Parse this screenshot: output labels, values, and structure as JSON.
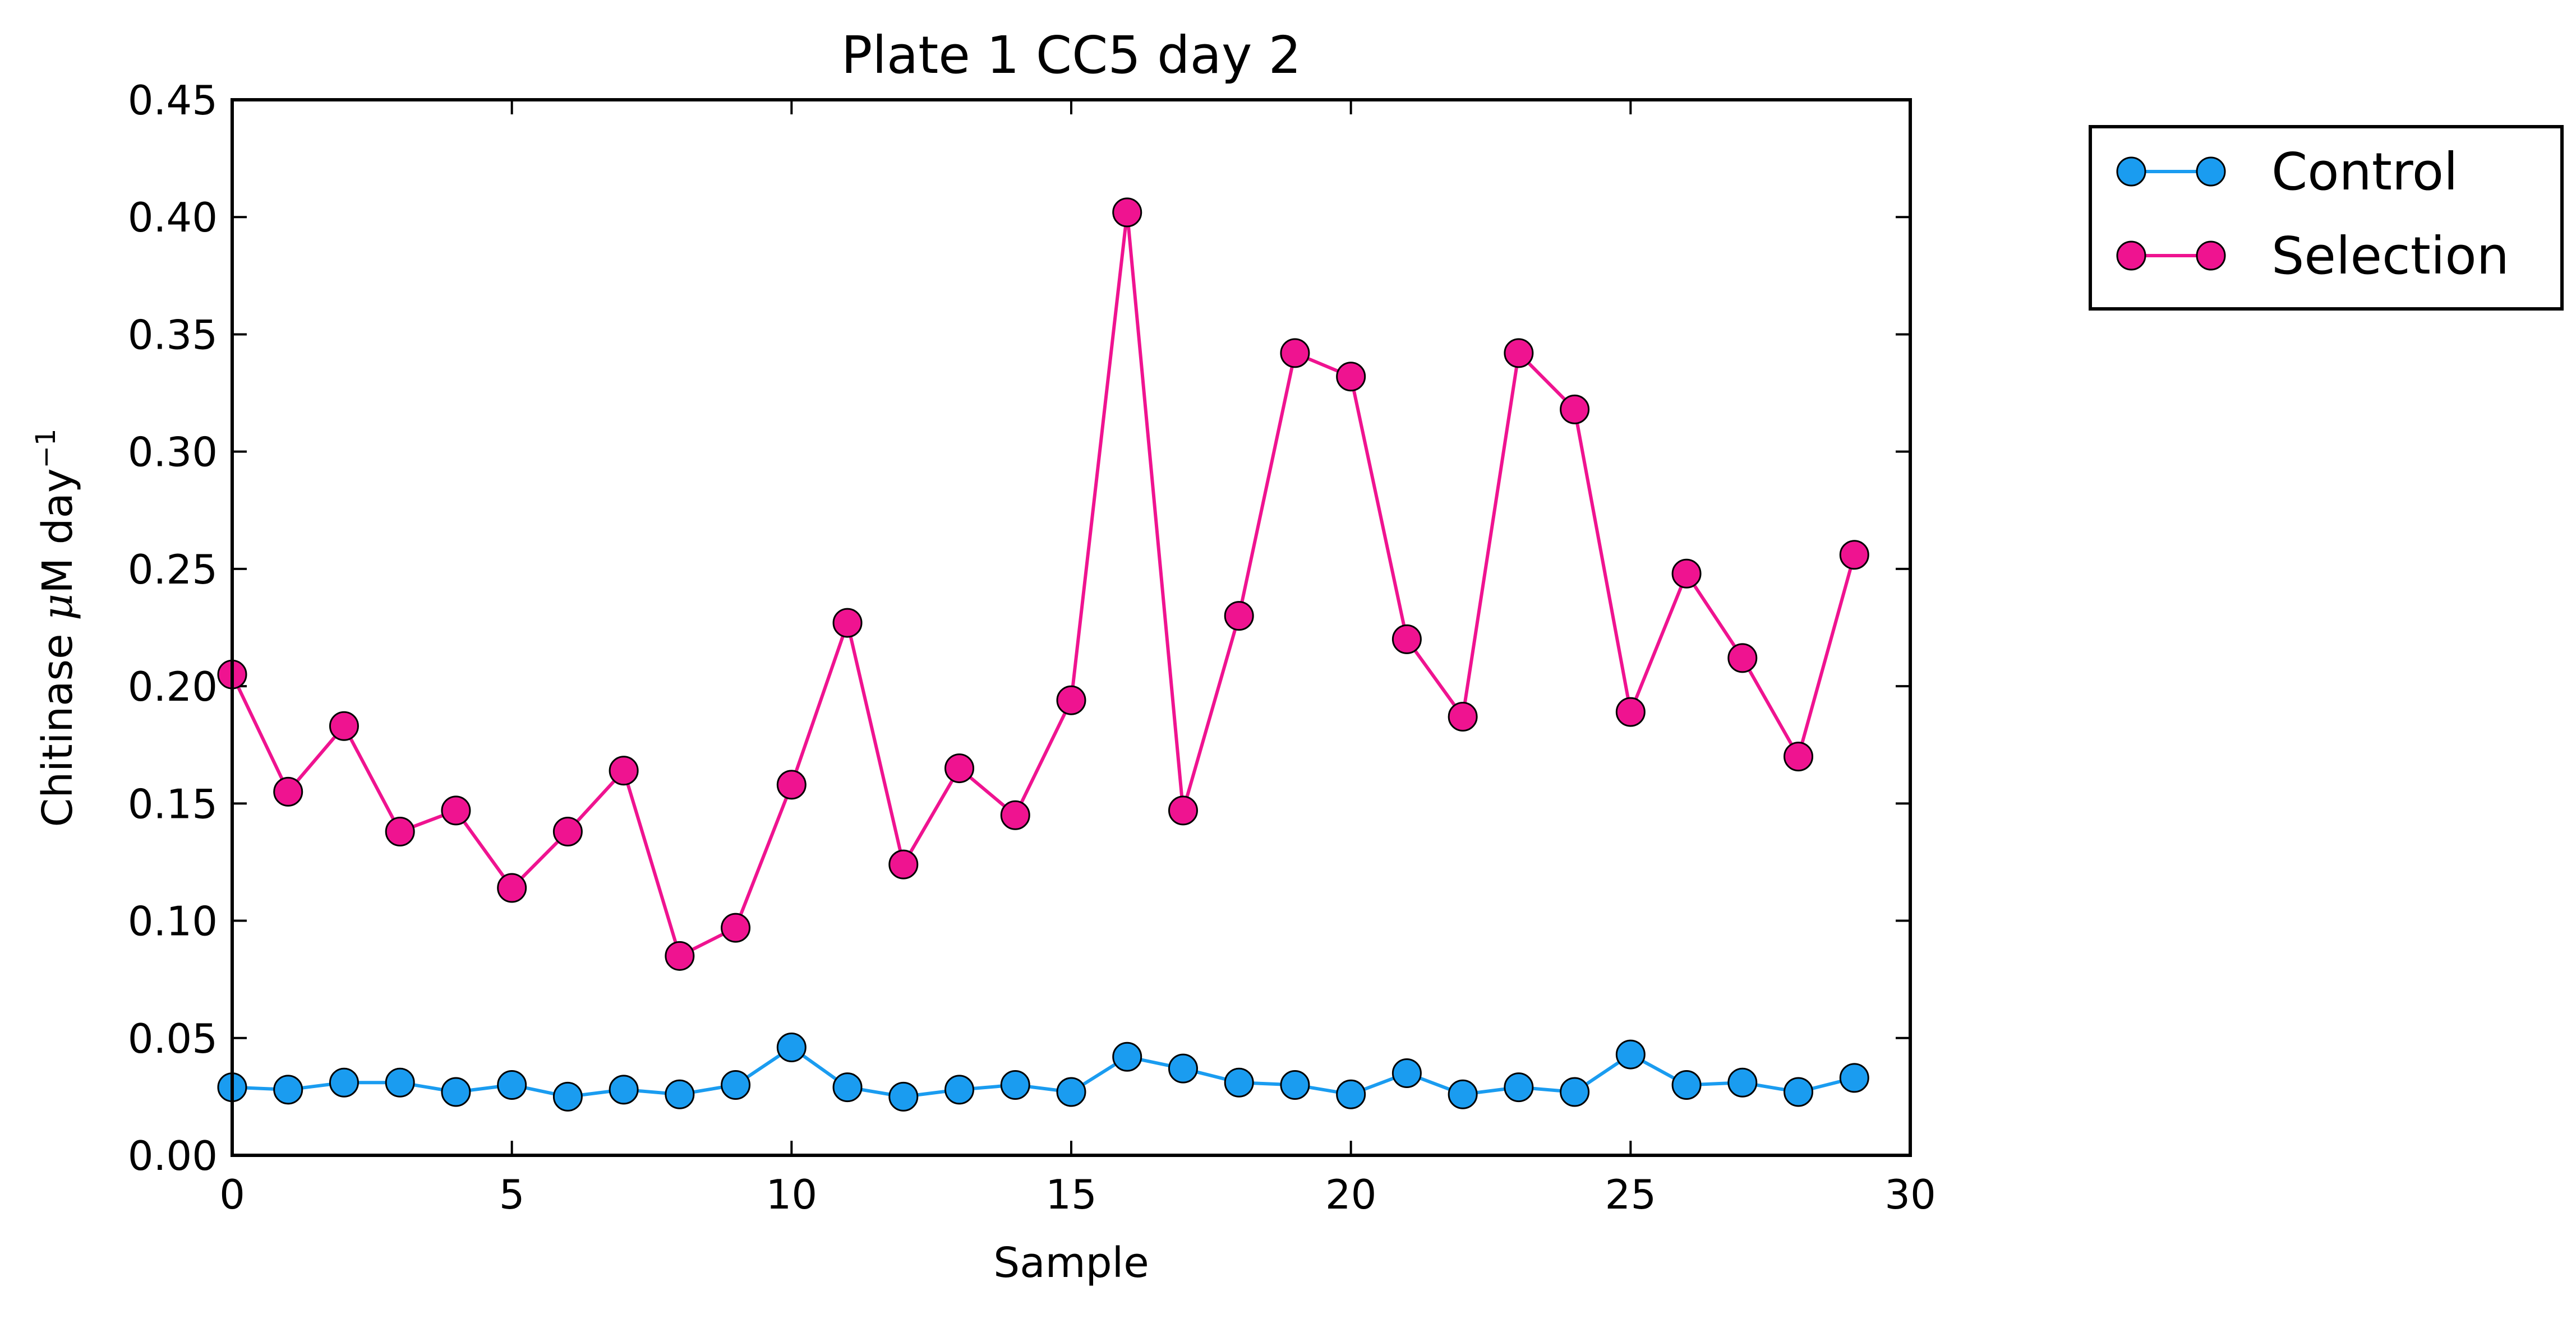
{
  "chart_data": {
    "type": "line",
    "title": "Plate 1 CC5 day 2",
    "xlabel": "Sample",
    "ylabel_text": "Chitinase ",
    "ylabel_mu": "μ",
    "ylabel_unit": "M day",
    "ylabel_exp": "−1",
    "xlim": [
      0,
      30
    ],
    "ylim": [
      0,
      0.45
    ],
    "xticks": [
      0,
      5,
      10,
      15,
      20,
      25,
      30
    ],
    "xtick_labels": [
      "0",
      "5",
      "10",
      "15",
      "20",
      "25",
      "30"
    ],
    "yticks": [
      0,
      0.05,
      0.1,
      0.15,
      0.2,
      0.25,
      0.3,
      0.35,
      0.4,
      0.45
    ],
    "ytick_labels": [
      "0.00",
      "0.05",
      "0.10",
      "0.15",
      "0.20",
      "0.25",
      "0.30",
      "0.35",
      "0.40",
      "0.45"
    ],
    "grid": false,
    "legend_position": "outside-right-top",
    "x": [
      0,
      1,
      2,
      3,
      4,
      5,
      6,
      7,
      8,
      9,
      10,
      11,
      12,
      13,
      14,
      15,
      16,
      17,
      18,
      19,
      20,
      21,
      22,
      23,
      24,
      25,
      26,
      27,
      28,
      29
    ],
    "series": [
      {
        "name": "Control",
        "color": "#1a9cf0",
        "marker": "circle",
        "values": [
          0.029,
          0.028,
          0.031,
          0.031,
          0.027,
          0.03,
          0.025,
          0.028,
          0.026,
          0.03,
          0.046,
          0.029,
          0.025,
          0.028,
          0.03,
          0.027,
          0.042,
          0.037,
          0.031,
          0.03,
          0.026,
          0.035,
          0.026,
          0.029,
          0.027,
          0.043,
          0.03,
          0.031,
          0.027,
          0.033
        ]
      },
      {
        "name": "Selection",
        "color": "#ef1390",
        "marker": "circle",
        "values": [
          0.205,
          0.155,
          0.183,
          0.138,
          0.147,
          0.114,
          0.138,
          0.164,
          0.085,
          0.097,
          0.158,
          0.227,
          0.124,
          0.165,
          0.145,
          0.194,
          0.402,
          0.147,
          0.23,
          0.342,
          0.332,
          0.22,
          0.187,
          0.342,
          0.318,
          0.189,
          0.248,
          0.212,
          0.17,
          0.256
        ]
      }
    ]
  }
}
